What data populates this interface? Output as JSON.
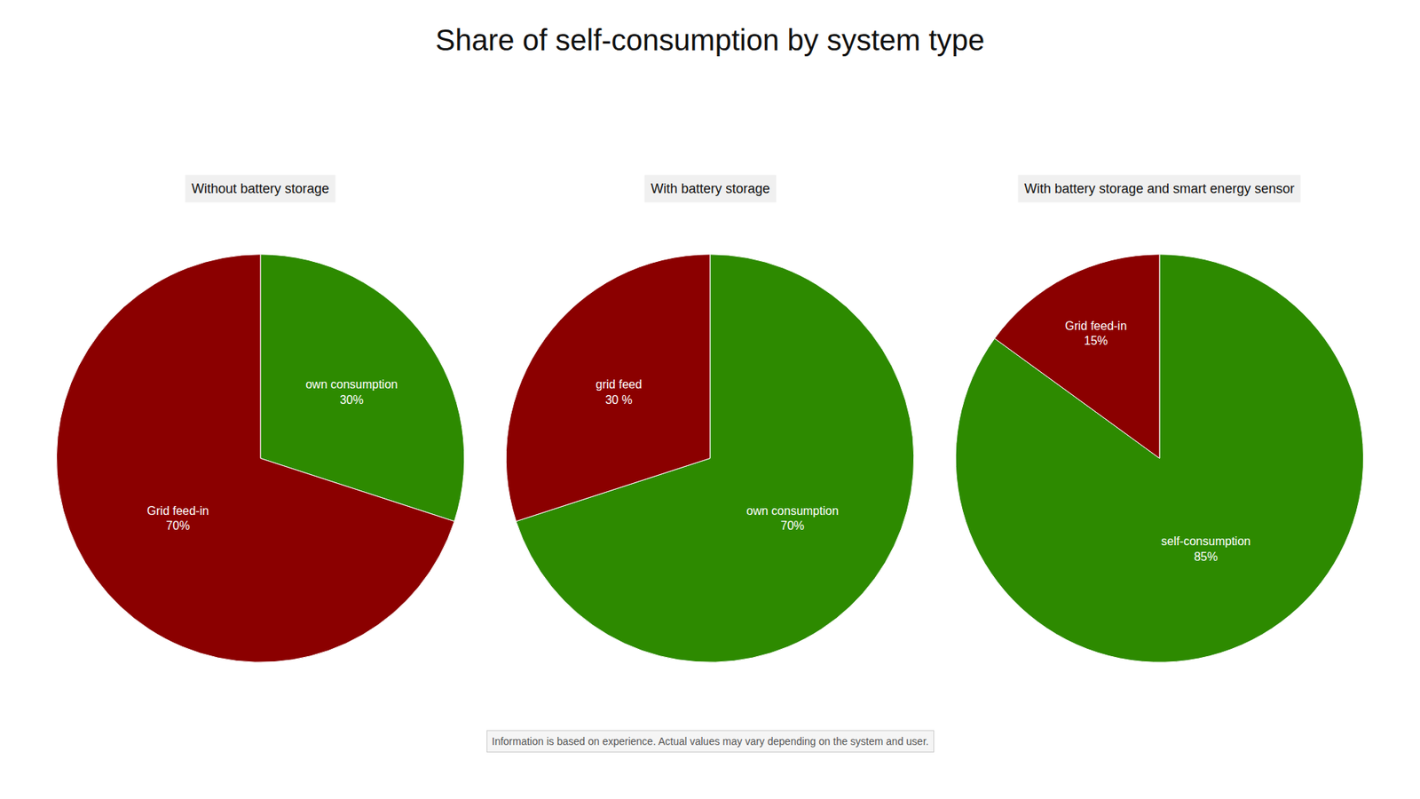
{
  "chart_data": {
    "type": "pie",
    "title": "Share of self-consumption by system type",
    "annotations": [
      "Information is based on experience. Actual values may vary depending on the system and user."
    ],
    "charts": [
      {
        "type": "pie",
        "subtitle": "Without battery storage",
        "categories": [
          "own consumption",
          "Grid feed-in"
        ],
        "values": [
          30,
          70
        ],
        "value_labels": [
          "30%",
          "70%"
        ],
        "colors": [
          "#2d8a00",
          "#8b0000"
        ],
        "data_labels": true
      },
      {
        "type": "pie",
        "subtitle": "With battery storage",
        "categories": [
          "own consumption",
          "grid feed"
        ],
        "values": [
          70,
          30
        ],
        "value_labels": [
          "70%",
          "30 %"
        ],
        "colors": [
          "#2d8a00",
          "#8b0000"
        ],
        "data_labels": true
      },
      {
        "type": "pie",
        "subtitle": "With battery storage and smart energy sensor",
        "categories": [
          "self-consumption",
          "Grid feed-in"
        ],
        "values": [
          85,
          15
        ],
        "value_labels": [
          "85%",
          "15%"
        ],
        "colors": [
          "#2d8a00",
          "#8b0000"
        ],
        "data_labels": true
      }
    ]
  }
}
